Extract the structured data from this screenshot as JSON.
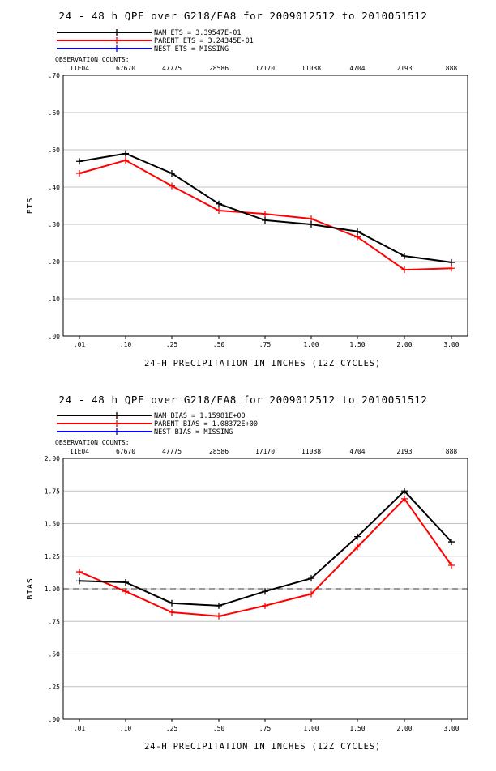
{
  "chart_data": [
    {
      "type": "line",
      "title": "24 - 48 h QPF over G218/EA8 for 2009012512 to 2010051512",
      "xlabel": "24-H PRECIPITATION IN INCHES (12Z CYCLES)",
      "ylabel": "ETS",
      "categories": [
        ".01",
        ".10",
        ".25",
        ".50",
        ".75",
        "1.00",
        "1.50",
        "2.00",
        "3.00"
      ],
      "obs_counts_label": "OBSERVATION COUNTS:",
      "obs_counts": [
        "11E04",
        "67670",
        "47775",
        "28586",
        "17170",
        "11088",
        "4704",
        "2193",
        "888"
      ],
      "ylim": [
        0,
        0.7
      ],
      "yticks": [
        ".00",
        ".10",
        ".20",
        ".30",
        ".40",
        ".50",
        ".60",
        ".70"
      ],
      "grid": true,
      "legend": [
        {
          "text": "NAM ETS =  3.39547E-01",
          "color": "#000000"
        },
        {
          "text": "PARENT ETS =  3.24345E-01",
          "color": "#ff0000"
        },
        {
          "text": "NEST ETS = MISSING",
          "color": "#0000ff"
        }
      ],
      "series": [
        {
          "color": "#000000",
          "values": [
            0.469,
            0.49,
            0.437,
            0.355,
            0.311,
            0.3,
            0.281,
            0.215,
            0.198
          ]
        },
        {
          "color": "#ff0000",
          "values": [
            0.437,
            0.472,
            0.403,
            0.337,
            0.328,
            0.315,
            0.266,
            0.178,
            0.182
          ]
        }
      ]
    },
    {
      "type": "line",
      "title": "24 - 48 h QPF over G218/EA8 for 2009012512 to 2010051512",
      "xlabel": "24-H PRECIPITATION IN INCHES (12Z CYCLES)",
      "ylabel": "BIAS",
      "categories": [
        ".01",
        ".10",
        ".25",
        ".50",
        ".75",
        "1.00",
        "1.50",
        "2.00",
        "3.00"
      ],
      "obs_counts_label": "OBSERVATION COUNTS:",
      "obs_counts": [
        "11E04",
        "67670",
        "47775",
        "28586",
        "17170",
        "11088",
        "4704",
        "2193",
        "888"
      ],
      "ylim": [
        0,
        2.0
      ],
      "yticks": [
        ".00",
        ".25",
        ".50",
        ".75",
        "1.00",
        "1.25",
        "1.50",
        "1.75",
        "2.00"
      ],
      "grid": true,
      "reference_line": 1.0,
      "legend": [
        {
          "text": "NAM BIAS =  1.15981E+00",
          "color": "#000000"
        },
        {
          "text": "PARENT BIAS =  1.08372E+00",
          "color": "#ff0000"
        },
        {
          "text": "NEST BIAS = MISSING",
          "color": "#0000ff"
        }
      ],
      "series": [
        {
          "color": "#000000",
          "values": [
            1.06,
            1.05,
            0.89,
            0.87,
            0.98,
            1.08,
            1.4,
            1.75,
            1.36
          ]
        },
        {
          "color": "#ff0000",
          "values": [
            1.13,
            0.98,
            0.82,
            0.79,
            0.87,
            0.96,
            1.32,
            1.69,
            1.18
          ]
        }
      ]
    }
  ]
}
